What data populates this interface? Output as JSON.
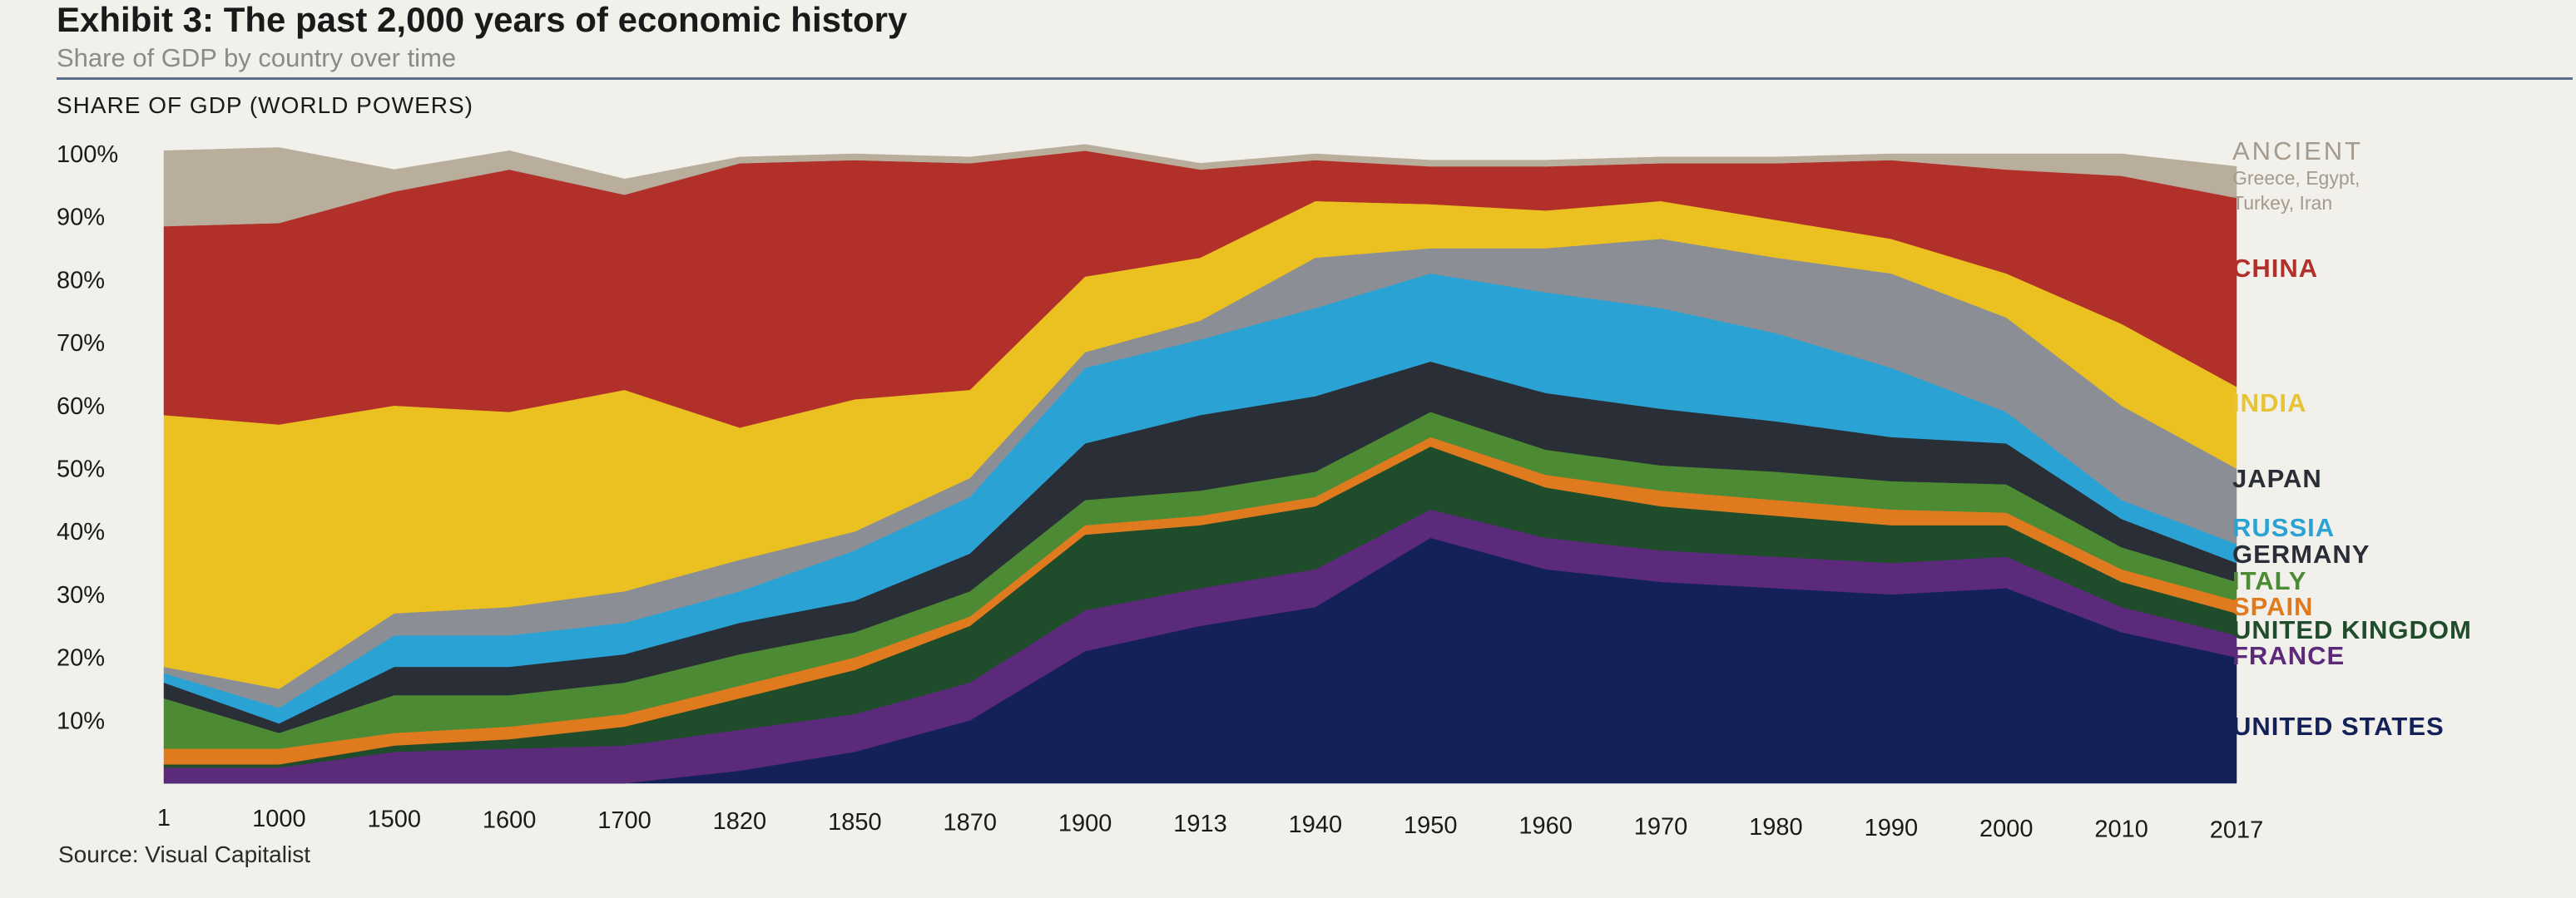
{
  "header": {
    "title": "Exhibit 3: The past 2,000 years of economic history",
    "subtitle": "Share of GDP by country over time"
  },
  "source": "Source: Visual Capitalist",
  "chart_data": {
    "type": "area",
    "title": "SHARE OF GDP (WORLD POWERS)",
    "xlabel": "",
    "ylabel": "",
    "ylim": [
      0,
      100
    ],
    "y_ticks": [
      "100%",
      "90%",
      "80%",
      "70%",
      "60%",
      "50%",
      "40%",
      "30%",
      "20%",
      "10%"
    ],
    "grid": false,
    "legend_position": "right",
    "stacking": "stacked, bottom to top",
    "categories": [
      "1",
      "1000",
      "1500",
      "1600",
      "1700",
      "1820",
      "1850",
      "1870",
      "1900",
      "1913",
      "1940",
      "1950",
      "1960",
      "1970",
      "1980",
      "1990",
      "2000",
      "2010",
      "2017"
    ],
    "series": [
      {
        "name": "UNITED STATES",
        "color": "#132158",
        "values": [
          0.0,
          0.0,
          0.0,
          0.0,
          0.0,
          2.0,
          5.0,
          10.0,
          21.0,
          25.0,
          28.0,
          39.0,
          34.0,
          32.0,
          31.0,
          30.0,
          31.0,
          24.0,
          20.0
        ]
      },
      {
        "name": "FRANCE",
        "color": "#5b2a7a",
        "values": [
          2.5,
          2.5,
          5.0,
          5.5,
          6.0,
          6.5,
          6.0,
          6.0,
          6.5,
          6.0,
          6.0,
          4.5,
          5.0,
          5.0,
          5.0,
          5.0,
          5.0,
          4.0,
          3.5
        ]
      },
      {
        "name": "UNITED KINGDOM",
        "color": "#1f4c2a",
        "values": [
          0.5,
          0.5,
          1.0,
          1.5,
          3.0,
          5.0,
          7.0,
          9.0,
          12.0,
          10.0,
          10.0,
          10.0,
          8.0,
          7.0,
          6.5,
          6.0,
          5.0,
          4.0,
          3.5
        ]
      },
      {
        "name": "SPAIN",
        "color": "#e07a1f",
        "values": [
          2.5,
          2.5,
          2.0,
          2.0,
          2.0,
          2.0,
          2.0,
          1.5,
          1.5,
          1.5,
          1.5,
          1.5,
          2.0,
          2.5,
          2.5,
          2.5,
          2.0,
          2.0,
          2.0
        ]
      },
      {
        "name": "ITALY",
        "color": "#4c8a34",
        "values": [
          8.0,
          2.5,
          6.0,
          5.0,
          5.0,
          5.0,
          4.0,
          4.0,
          4.0,
          4.0,
          4.0,
          4.0,
          4.0,
          4.0,
          4.5,
          4.5,
          4.5,
          3.5,
          3.0
        ]
      },
      {
        "name": "GERMANY",
        "color": "#2a2e36",
        "values": [
          2.5,
          1.5,
          4.5,
          4.5,
          4.5,
          5.0,
          5.0,
          6.0,
          9.0,
          12.0,
          12.0,
          8.0,
          9.0,
          9.0,
          8.0,
          7.0,
          6.5,
          4.5,
          3.0
        ]
      },
      {
        "name": "RUSSIA",
        "color": "#2aa3d4",
        "values": [
          1.5,
          2.5,
          5.0,
          5.0,
          5.0,
          5.0,
          8.0,
          9.0,
          12.0,
          12.0,
          14.0,
          14.0,
          16.0,
          16.0,
          14.0,
          11.0,
          5.0,
          3.0,
          3.0
        ]
      },
      {
        "name": "JAPAN",
        "color": "#8b8f95",
        "values": [
          1.0,
          3.0,
          3.5,
          4.5,
          5.0,
          5.0,
          3.0,
          3.0,
          2.5,
          3.0,
          8.0,
          4.0,
          7.0,
          11.0,
          12.0,
          15.0,
          15.0,
          15.0,
          12.0
        ]
      },
      {
        "name": "INDIA",
        "color": "#eac120",
        "values": [
          40.0,
          42.0,
          33.0,
          31.0,
          32.0,
          21.0,
          21.0,
          14.0,
          12.0,
          10.0,
          9.0,
          7.0,
          6.0,
          6.0,
          6.0,
          5.5,
          7.0,
          13.0,
          13.0
        ]
      },
      {
        "name": "CHINA",
        "color": "#b2302a",
        "values": [
          30.0,
          32.0,
          34.0,
          38.5,
          31.0,
          42.0,
          38.0,
          36.0,
          20.0,
          14.0,
          6.5,
          6.0,
          7.0,
          6.0,
          9.0,
          12.5,
          16.5,
          23.5,
          30.0
        ]
      },
      {
        "name": "ANCIENT",
        "note": "Greece, Egypt,\nTurkey, Iran",
        "color": "#b9ad9c",
        "values": [
          12.0,
          12.0,
          3.5,
          3.0,
          2.5,
          1.0,
          1.0,
          1.0,
          1.0,
          1.0,
          1.0,
          1.0,
          1.0,
          1.0,
          1.0,
          1.0,
          2.5,
          3.5,
          5.0
        ]
      }
    ]
  }
}
